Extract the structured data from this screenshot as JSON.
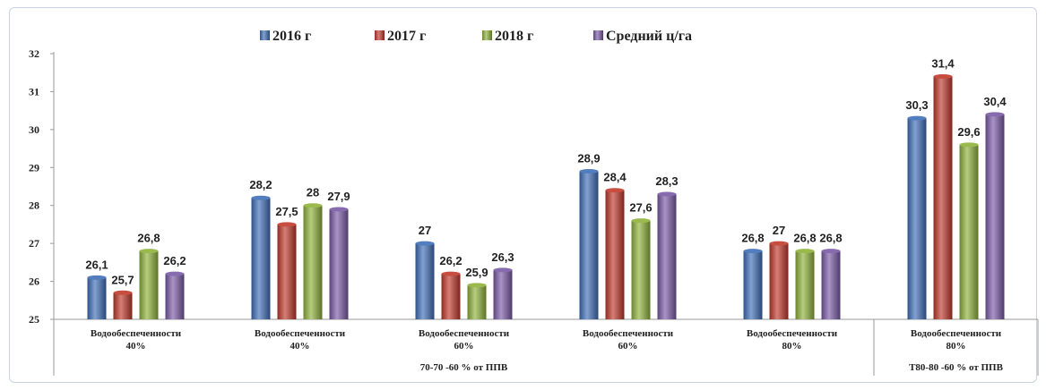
{
  "chart_data": {
    "type": "bar",
    "ylim": [
      25,
      32
    ],
    "yticks": [
      25,
      26,
      27,
      28,
      29,
      30,
      31,
      32
    ],
    "legend_position": "top",
    "grid": false,
    "categories": [
      [
        "Водообеспеченности",
        "40%"
      ],
      [
        "Водообеспеченности",
        "40%"
      ],
      [
        "Водообеспеченности",
        "60%"
      ],
      [
        "Водообеспеченности",
        "60%"
      ],
      [
        "Водообеспеченности",
        "80%"
      ],
      [
        "Водообеспеченности",
        "80%"
      ]
    ],
    "groups": [
      {
        "label": "70-70 -60 % от ППВ",
        "span": [
          0,
          4
        ]
      },
      {
        "label": "Т80-80 -60 % от ППВ",
        "span": [
          5,
          5
        ]
      }
    ],
    "series": [
      {
        "name": "2016 г",
        "color": "#3f6fb8",
        "values": [
          26.1,
          28.2,
          27,
          28.9,
          26.8,
          30.3
        ],
        "labels": [
          "26,1",
          "28,2",
          "27",
          "28,9",
          "26,8",
          "30,3"
        ]
      },
      {
        "name": "2017 г",
        "color": "#c0392b",
        "values": [
          25.7,
          27.5,
          26.2,
          28.4,
          27,
          31.4
        ],
        "labels": [
          "25,7",
          "27,5",
          "26,2",
          "28,4",
          "27",
          "31,4"
        ]
      },
      {
        "name": "2018 г",
        "color": "#8fb23a",
        "values": [
          26.8,
          28,
          25.9,
          27.6,
          26.8,
          29.6
        ],
        "labels": [
          "26,8",
          "28",
          "25,9",
          "27,6",
          "26,8",
          "29,6"
        ]
      },
      {
        "name": "Средний ц/га",
        "color": "#7a5aa6",
        "values": [
          26.2,
          27.9,
          26.3,
          28.3,
          26.8,
          30.4
        ],
        "labels": [
          "26,2",
          "27,9",
          "26,3",
          "28,3",
          "26,8",
          "30,4"
        ]
      }
    ]
  }
}
